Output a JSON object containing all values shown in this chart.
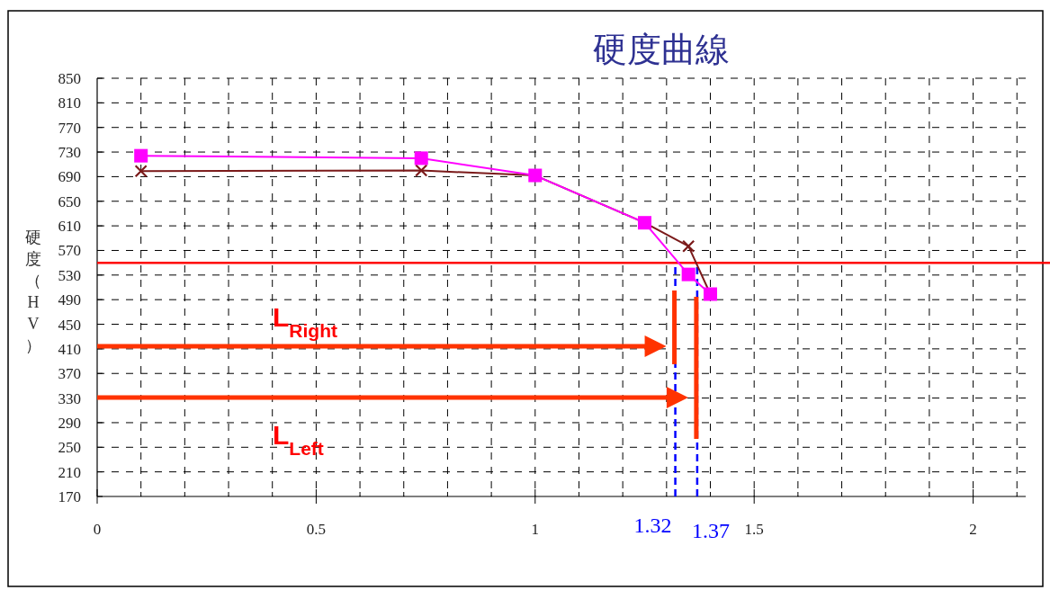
{
  "chart_data": {
    "type": "line",
    "title": "硬度曲線",
    "ylabel": "硬度（HV）",
    "xlim": [
      0,
      2.12
    ],
    "ylim": [
      170,
      850
    ],
    "xticks": [
      0,
      {
        "value": 0.1,
        "label": null
      },
      {
        "value": 0.2,
        "label": null
      },
      {
        "value": 0.3,
        "label": null
      },
      {
        "value": 0.4,
        "label": null
      },
      0.5,
      {
        "value": 0.6,
        "label": null
      },
      {
        "value": 0.7,
        "label": null
      },
      {
        "value": 0.8,
        "label": null
      },
      {
        "value": 0.9,
        "label": null
      },
      1,
      {
        "value": 1.1,
        "label": null
      },
      {
        "value": 1.2,
        "label": null
      },
      {
        "value": 1.3,
        "label": null
      },
      {
        "value": 1.4,
        "label": null
      },
      1.5,
      {
        "value": 1.6,
        "label": null
      },
      {
        "value": 1.7,
        "label": null
      },
      {
        "value": 1.8,
        "label": null
      },
      {
        "value": 1.9,
        "label": null
      },
      2,
      {
        "value": 2.1,
        "label": null
      }
    ],
    "yticks": [
      170,
      210,
      250,
      290,
      330,
      370,
      410,
      450,
      490,
      530,
      570,
      610,
      650,
      690,
      730,
      770,
      810,
      850
    ],
    "grid": true,
    "series": [
      {
        "color": "#7b1a1a",
        "marker": "cross",
        "x": [
          0.1,
          0.74,
          1,
          1.25,
          1.35,
          1.4
        ],
        "values": [
          699,
          700,
          692,
          615,
          577,
          499
        ]
      },
      {
        "color": "#ff00ff",
        "marker": "square",
        "x": [
          0.1,
          0.74,
          1,
          1.25,
          1.35,
          1.4
        ],
        "values": [
          724,
          720,
          692,
          615,
          531,
          499
        ]
      }
    ],
    "ref_lines": [
      {
        "axis": "y",
        "value": 550,
        "color": "#ff0000",
        "line_style": "solid"
      },
      {
        "axis": "x",
        "value": 1.32,
        "label": "1.32",
        "color": "#0000ff",
        "line_style": "dashed"
      },
      {
        "axis": "x",
        "value": 1.37,
        "label": "1.37",
        "color": "#0000ff",
        "line_style": "dashed"
      }
    ],
    "annotations": [
      "L$_{Right}$",
      "L$_{Left}$"
    ]
  }
}
